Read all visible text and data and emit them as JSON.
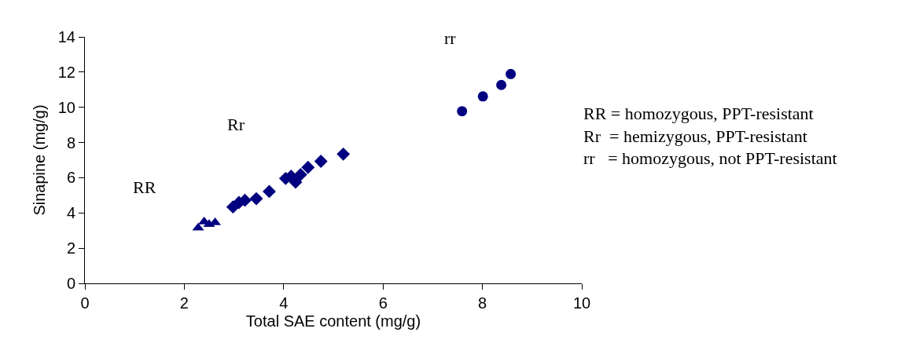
{
  "chart_data": {
    "type": "scatter",
    "xlabel": "Total SAE content (mg/g)",
    "ylabel": "Sinapine (mg/g)",
    "xlim": [
      0,
      10
    ],
    "xticks": [
      0,
      2,
      4,
      6,
      8,
      10
    ],
    "ylim": [
      0,
      14
    ],
    "yticks": [
      0,
      2,
      4,
      6,
      8,
      10,
      12,
      14
    ],
    "series": [
      {
        "color": "#000080",
        "marker": "triangle",
        "x": [
          2.28,
          2.4,
          2.5,
          2.62
        ],
        "values": [
          3.15,
          3.5,
          3.35,
          3.45
        ]
      },
      {
        "color": "#000080",
        "marker": "diamond",
        "x": [
          2.98,
          3.1,
          3.22,
          3.45,
          3.71,
          4.04,
          4.15,
          4.24,
          4.34,
          4.49,
          4.75,
          5.2
        ],
        "values": [
          4.34,
          4.59,
          4.72,
          4.81,
          5.22,
          5.96,
          6.09,
          5.75,
          6.18,
          6.59,
          6.93,
          7.34
        ]
      },
      {
        "color": "#000080",
        "marker": "circle",
        "x": [
          7.59,
          8.01,
          8.38,
          8.57
        ],
        "values": [
          9.78,
          10.62,
          11.27,
          11.89
        ]
      }
    ],
    "annotations": [
      "RR",
      "Rr",
      "rr",
      "RR = homozygous, PPT-resistant",
      "Rr  = hemizygous, PPT-resistant",
      "rr   = homozygous, not PPT-resistant"
    ]
  }
}
